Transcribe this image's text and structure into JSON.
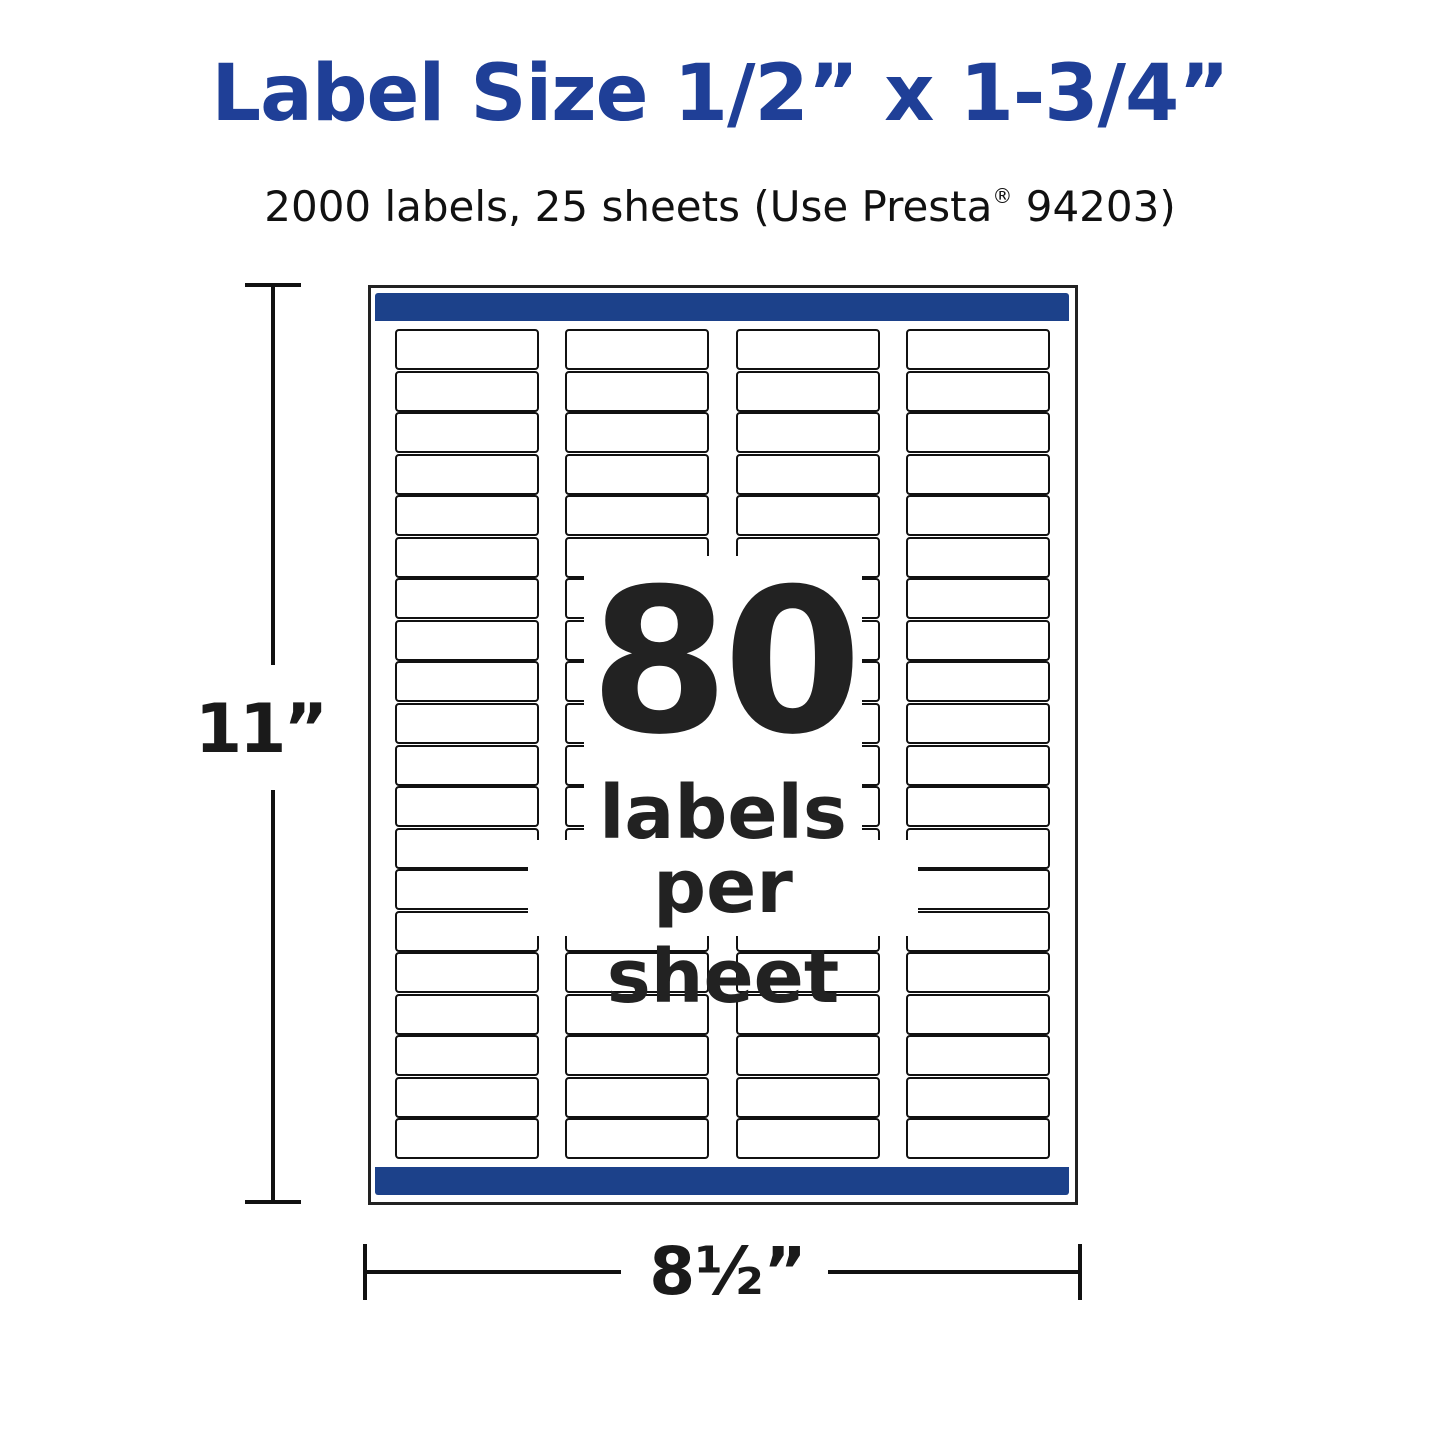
{
  "title": "Label Size 1/2” x 1-3/4”",
  "subtitle": {
    "text": "2000 labels, 25 sheets (Use Presta",
    "mark": "®",
    "suffix": " 94203)"
  },
  "badge": {
    "count": "80",
    "line1": "labels",
    "line2": "per sheet"
  },
  "dimensions": {
    "height": "11”",
    "width": "8½”"
  },
  "colors": {
    "title": "#1f3f97",
    "sheet_bar": "#1c418a"
  }
}
